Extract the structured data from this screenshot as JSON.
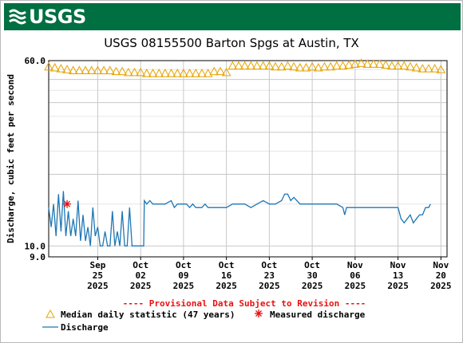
{
  "header": {
    "logo_text": "USGS"
  },
  "colors": {
    "banner": "#006f41",
    "median": "#e7a300",
    "discharge": "#1f77b4",
    "measured": "#e8110f",
    "provisional": "#e8110f",
    "grid": "#c8c8c8"
  },
  "chart_data": {
    "type": "line",
    "title": "USGS 08155500 Barton Spgs at Austin, TX",
    "ylabel": "Discharge, cubic feet per second",
    "yscale": "log",
    "ylim": [
      9.0,
      60.0
    ],
    "xlim": [
      "2025-09-17",
      "2025-11-21"
    ],
    "ytick_labels": [
      "60.0",
      "10.0",
      "9.0"
    ],
    "xticks": [
      {
        "date": "2025-09-25",
        "month": "Sep",
        "day": "25",
        "year": "2025"
      },
      {
        "date": "2025-10-02",
        "month": "Oct",
        "day": "02",
        "year": "2025"
      },
      {
        "date": "2025-10-09",
        "month": "Oct",
        "day": "09",
        "year": "2025"
      },
      {
        "date": "2025-10-16",
        "month": "Oct",
        "day": "16",
        "year": "2025"
      },
      {
        "date": "2025-10-23",
        "month": "Oct",
        "day": "23",
        "year": "2025"
      },
      {
        "date": "2025-10-30",
        "month": "Oct",
        "day": "30",
        "year": "2025"
      },
      {
        "date": "2025-11-06",
        "month": "Nov",
        "day": "06",
        "year": "2025"
      },
      {
        "date": "2025-11-13",
        "month": "Nov",
        "day": "13",
        "year": "2025"
      },
      {
        "date": "2025-11-20",
        "month": "Nov",
        "day": "20",
        "year": "2025"
      }
    ],
    "grid": true,
    "provisional_note": "---- Provisional Data Subject to Revision ----",
    "legend": [
      {
        "key": "median",
        "label": "Median daily statistic (47 years)"
      },
      {
        "key": "measured",
        "label": "Measured discharge"
      },
      {
        "key": "discharge",
        "label": "Discharge"
      }
    ],
    "median_series": [
      {
        "date": "2025-09-17",
        "value": 56.5
      },
      {
        "date": "2025-09-18",
        "value": 56.0
      },
      {
        "date": "2025-09-19",
        "value": 55.5
      },
      {
        "date": "2025-09-20",
        "value": 55.0
      },
      {
        "date": "2025-09-21",
        "value": 54.5
      },
      {
        "date": "2025-09-22",
        "value": 54.5
      },
      {
        "date": "2025-09-23",
        "value": 54.5
      },
      {
        "date": "2025-09-24",
        "value": 54.5
      },
      {
        "date": "2025-09-25",
        "value": 54.5
      },
      {
        "date": "2025-09-26",
        "value": 54.5
      },
      {
        "date": "2025-09-27",
        "value": 54.5
      },
      {
        "date": "2025-09-28",
        "value": 54.0
      },
      {
        "date": "2025-09-29",
        "value": 54.0
      },
      {
        "date": "2025-09-30",
        "value": 53.5
      },
      {
        "date": "2025-10-01",
        "value": 53.5
      },
      {
        "date": "2025-10-02",
        "value": 53.5
      },
      {
        "date": "2025-10-03",
        "value": 53.0
      },
      {
        "date": "2025-10-04",
        "value": 53.0
      },
      {
        "date": "2025-10-05",
        "value": 53.0
      },
      {
        "date": "2025-10-06",
        "value": 53.0
      },
      {
        "date": "2025-10-07",
        "value": 53.0
      },
      {
        "date": "2025-10-08",
        "value": 53.0
      },
      {
        "date": "2025-10-09",
        "value": 53.0
      },
      {
        "date": "2025-10-10",
        "value": 53.0
      },
      {
        "date": "2025-10-11",
        "value": 53.0
      },
      {
        "date": "2025-10-12",
        "value": 53.0
      },
      {
        "date": "2025-10-13",
        "value": 53.0
      },
      {
        "date": "2025-10-14",
        "value": 54.0
      },
      {
        "date": "2025-10-15",
        "value": 54.0
      },
      {
        "date": "2025-10-16",
        "value": 53.5
      },
      {
        "date": "2025-10-17",
        "value": 57.0
      },
      {
        "date": "2025-10-18",
        "value": 57.0
      },
      {
        "date": "2025-10-19",
        "value": 57.0
      },
      {
        "date": "2025-10-20",
        "value": 57.0
      },
      {
        "date": "2025-10-21",
        "value": 57.0
      },
      {
        "date": "2025-10-22",
        "value": 57.0
      },
      {
        "date": "2025-10-23",
        "value": 57.0
      },
      {
        "date": "2025-10-24",
        "value": 56.5
      },
      {
        "date": "2025-10-25",
        "value": 56.5
      },
      {
        "date": "2025-10-26",
        "value": 57.0
      },
      {
        "date": "2025-10-27",
        "value": 56.5
      },
      {
        "date": "2025-10-28",
        "value": 56.0
      },
      {
        "date": "2025-10-29",
        "value": 56.0
      },
      {
        "date": "2025-10-30",
        "value": 56.5
      },
      {
        "date": "2025-10-31",
        "value": 56.0
      },
      {
        "date": "2025-11-01",
        "value": 56.5
      },
      {
        "date": "2025-11-02",
        "value": 56.5
      },
      {
        "date": "2025-11-03",
        "value": 57.0
      },
      {
        "date": "2025-11-04",
        "value": 57.0
      },
      {
        "date": "2025-11-05",
        "value": 57.5
      },
      {
        "date": "2025-11-06",
        "value": 58.0
      },
      {
        "date": "2025-11-07",
        "value": 58.5
      },
      {
        "date": "2025-11-08",
        "value": 58.0
      },
      {
        "date": "2025-11-09",
        "value": 58.0
      },
      {
        "date": "2025-11-10",
        "value": 58.0
      },
      {
        "date": "2025-11-11",
        "value": 57.5
      },
      {
        "date": "2025-11-12",
        "value": 57.0
      },
      {
        "date": "2025-11-13",
        "value": 57.0
      },
      {
        "date": "2025-11-14",
        "value": 57.0
      },
      {
        "date": "2025-11-15",
        "value": 56.5
      },
      {
        "date": "2025-11-16",
        "value": 56.0
      },
      {
        "date": "2025-11-17",
        "value": 55.5
      },
      {
        "date": "2025-11-18",
        "value": 55.5
      },
      {
        "date": "2025-11-19",
        "value": 55.5
      },
      {
        "date": "2025-11-20",
        "value": 55.0
      }
    ],
    "discharge_series": [
      {
        "date": "2025-09-17",
        "value": 14.5
      },
      {
        "date": "2025-09-17.4",
        "value": 12.0
      },
      {
        "date": "2025-09-17.8",
        "value": 15.0
      },
      {
        "date": "2025-09-18.2",
        "value": 11.0
      },
      {
        "date": "2025-09-18.6",
        "value": 16.5
      },
      {
        "date": "2025-09-19.0",
        "value": 11.5
      },
      {
        "date": "2025-09-19.4",
        "value": 17.0
      },
      {
        "date": "2025-09-19.8",
        "value": 11.0
      },
      {
        "date": "2025-09-20.2",
        "value": 14.0
      },
      {
        "date": "2025-09-20.6",
        "value": 11.0
      },
      {
        "date": "2025-09-21.0",
        "value": 13.0
      },
      {
        "date": "2025-09-21.4",
        "value": 11.0
      },
      {
        "date": "2025-09-21.8",
        "value": 15.5
      },
      {
        "date": "2025-09-22.2",
        "value": 10.5
      },
      {
        "date": "2025-09-22.6",
        "value": 13.5
      },
      {
        "date": "2025-09-23.0",
        "value": 10.5
      },
      {
        "date": "2025-09-23.4",
        "value": 12.0
      },
      {
        "date": "2025-09-23.8",
        "value": 10.0
      },
      {
        "date": "2025-09-24.2",
        "value": 14.5
      },
      {
        "date": "2025-09-24.6",
        "value": 11.0
      },
      {
        "date": "2025-09-25.0",
        "value": 12.0
      },
      {
        "date": "2025-09-25.4",
        "value": 10.0
      },
      {
        "date": "2025-09-25.8",
        "value": 10.0
      },
      {
        "date": "2025-09-26.2",
        "value": 11.5
      },
      {
        "date": "2025-09-26.6",
        "value": 10.0
      },
      {
        "date": "2025-09-27.0",
        "value": 10.0
      },
      {
        "date": "2025-09-27.4",
        "value": 14.0
      },
      {
        "date": "2025-09-27.8",
        "value": 10.0
      },
      {
        "date": "2025-09-28.2",
        "value": 11.5
      },
      {
        "date": "2025-09-28.6",
        "value": 10.0
      },
      {
        "date": "2025-09-29.0",
        "value": 14.0
      },
      {
        "date": "2025-09-29.4",
        "value": 10.0
      },
      {
        "date": "2025-09-29.8",
        "value": 10.0
      },
      {
        "date": "2025-09-30.2",
        "value": 14.5
      },
      {
        "date": "2025-09-30.6",
        "value": 10.0
      },
      {
        "date": "2025-10-01.0",
        "value": 10.0
      },
      {
        "date": "2025-10-01.4",
        "value": 10.0
      },
      {
        "date": "2025-10-01.8",
        "value": 10.0
      },
      {
        "date": "2025-10-02.2",
        "value": 10.0
      },
      {
        "date": "2025-10-02.5",
        "value": 10.0
      },
      {
        "date": "2025-10-02.6",
        "value": 15.5
      },
      {
        "date": "2025-10-03.0",
        "value": 15.0
      },
      {
        "date": "2025-10-03.5",
        "value": 15.5
      },
      {
        "date": "2025-10-04.0",
        "value": 15.0
      },
      {
        "date": "2025-10-05.0",
        "value": 15.0
      },
      {
        "date": "2025-10-06.0",
        "value": 15.0
      },
      {
        "date": "2025-10-07.0",
        "value": 15.5
      },
      {
        "date": "2025-10-07.5",
        "value": 14.5
      },
      {
        "date": "2025-10-08.0",
        "value": 15.0
      },
      {
        "date": "2025-10-09.0",
        "value": 15.0
      },
      {
        "date": "2025-10-09.5",
        "value": 15.0
      },
      {
        "date": "2025-10-10.0",
        "value": 14.5
      },
      {
        "date": "2025-10-10.5",
        "value": 15.0
      },
      {
        "date": "2025-10-11.0",
        "value": 14.5
      },
      {
        "date": "2025-10-12.0",
        "value": 14.5
      },
      {
        "date": "2025-10-12.5",
        "value": 15.0
      },
      {
        "date": "2025-10-13.0",
        "value": 14.5
      },
      {
        "date": "2025-10-14.0",
        "value": 14.5
      },
      {
        "date": "2025-10-15.0",
        "value": 14.5
      },
      {
        "date": "2025-10-16.0",
        "value": 14.5
      },
      {
        "date": "2025-10-17.0",
        "value": 15.0
      },
      {
        "date": "2025-10-18.0",
        "value": 15.0
      },
      {
        "date": "2025-10-19.0",
        "value": 15.0
      },
      {
        "date": "2025-10-20.0",
        "value": 14.5
      },
      {
        "date": "2025-10-21.0",
        "value": 15.0
      },
      {
        "date": "2025-10-22.0",
        "value": 15.5
      },
      {
        "date": "2025-10-23.0",
        "value": 15.0
      },
      {
        "date": "2025-10-24.0",
        "value": 15.0
      },
      {
        "date": "2025-10-25.0",
        "value": 15.5
      },
      {
        "date": "2025-10-25.5",
        "value": 16.5
      },
      {
        "date": "2025-10-26.0",
        "value": 16.5
      },
      {
        "date": "2025-10-26.5",
        "value": 15.5
      },
      {
        "date": "2025-10-27.0",
        "value": 16.0
      },
      {
        "date": "2025-10-27.5",
        "value": 15.5
      },
      {
        "date": "2025-10-28.0",
        "value": 15.0
      },
      {
        "date": "2025-10-29.0",
        "value": 15.0
      },
      {
        "date": "2025-10-30.0",
        "value": 15.0
      },
      {
        "date": "2025-10-31.0",
        "value": 15.0
      },
      {
        "date": "2025-11-01.0",
        "value": 15.0
      },
      {
        "date": "2025-11-02.0",
        "value": 15.0
      },
      {
        "date": "2025-11-03.0",
        "value": 15.0
      },
      {
        "date": "2025-11-04.0",
        "value": 14.5
      },
      {
        "date": "2025-11-04.3",
        "value": 13.5
      },
      {
        "date": "2025-11-04.6",
        "value": 14.5
      },
      {
        "date": "2025-11-05.0",
        "value": 14.5
      },
      {
        "date": "2025-11-06.0",
        "value": 14.5
      },
      {
        "date": "2025-11-07.0",
        "value": 14.5
      },
      {
        "date": "2025-11-08.0",
        "value": 14.5
      },
      {
        "date": "2025-11-09.0",
        "value": 14.5
      },
      {
        "date": "2025-11-10.0",
        "value": 14.5
      },
      {
        "date": "2025-11-11.0",
        "value": 14.5
      },
      {
        "date": "2025-11-12.0",
        "value": 14.5
      },
      {
        "date": "2025-11-13.0",
        "value": 14.5
      },
      {
        "date": "2025-11-13.5",
        "value": 13.0
      },
      {
        "date": "2025-11-14.0",
        "value": 12.5
      },
      {
        "date": "2025-11-14.5",
        "value": 13.0
      },
      {
        "date": "2025-11-15.0",
        "value": 13.5
      },
      {
        "date": "2025-11-15.5",
        "value": 12.5
      },
      {
        "date": "2025-11-16.0",
        "value": 13.0
      },
      {
        "date": "2025-11-16.5",
        "value": 13.5
      },
      {
        "date": "2025-11-17.0",
        "value": 13.5
      },
      {
        "date": "2025-11-17.5",
        "value": 14.5
      },
      {
        "date": "2025-11-18.0",
        "value": 14.5
      },
      {
        "date": "2025-11-18.3",
        "value": 15.0
      }
    ],
    "measured": [
      {
        "date": "2025-09-20",
        "value": 15.0
      }
    ]
  }
}
